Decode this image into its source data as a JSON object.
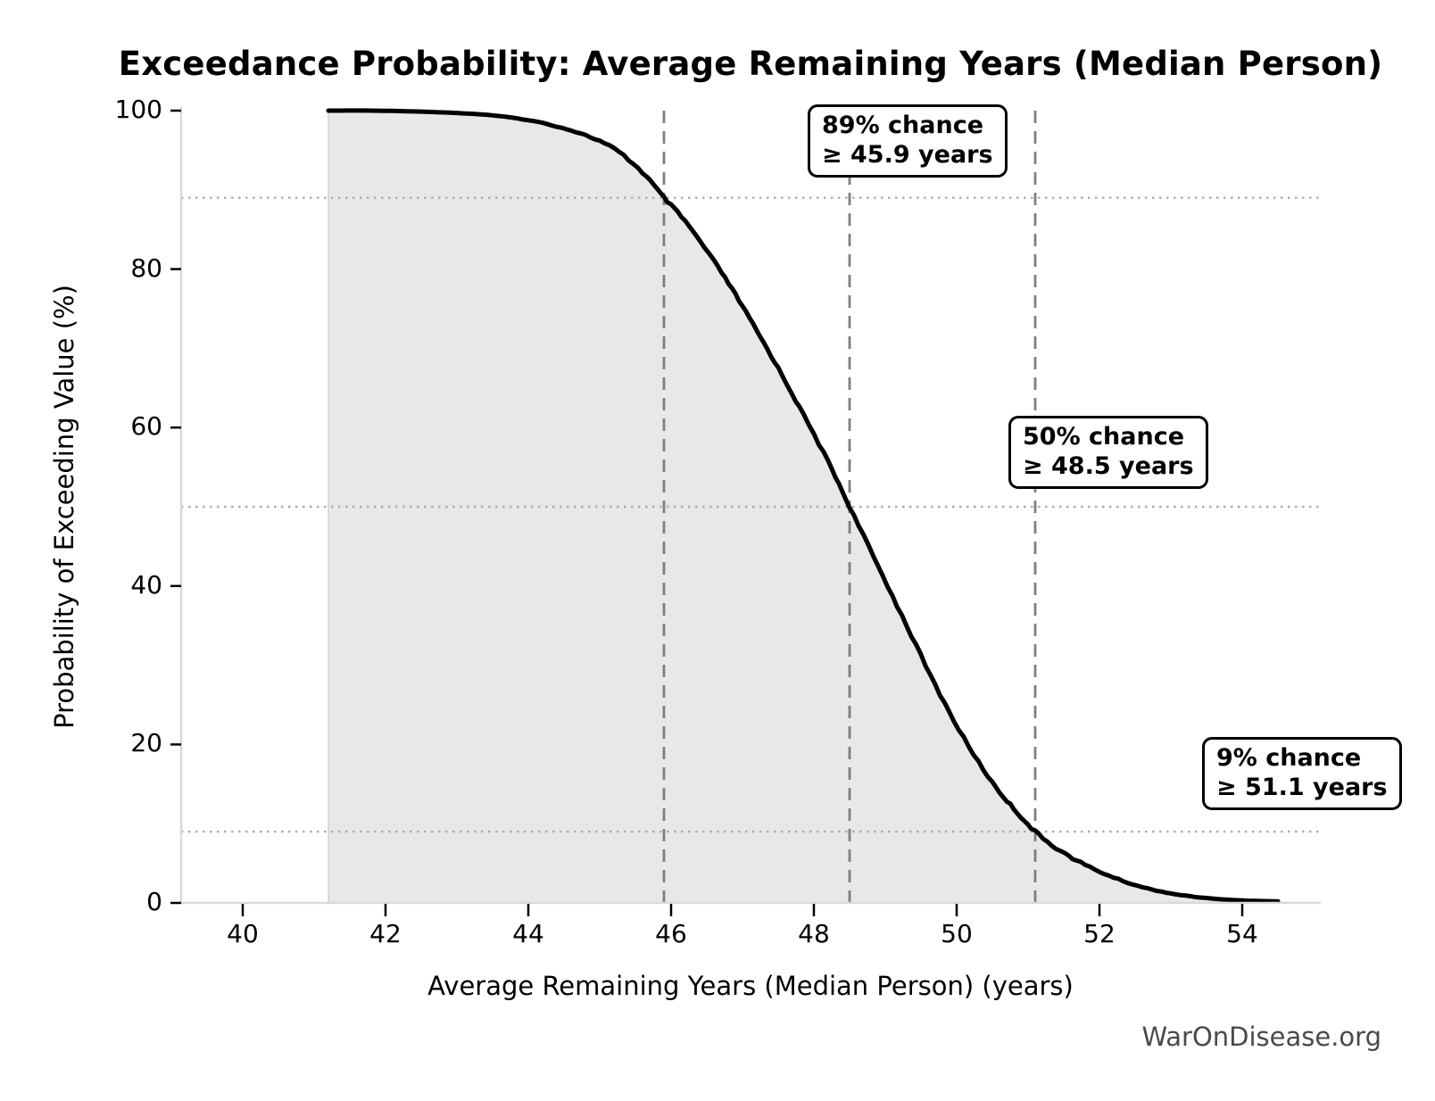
{
  "chart_data": {
    "type": "line",
    "subtype": "exceedance-probability-curve",
    "title": "Exceedance Probability: Average Remaining Years (Median Person)",
    "xlabel": "Average Remaining Years (Median Person) (years)",
    "ylabel": "Probability of Exceeding Value (%)",
    "x_ticks": [
      "40",
      "42",
      "44",
      "46",
      "48",
      "50",
      "52",
      "54"
    ],
    "y_ticks": [
      "0",
      "20",
      "40",
      "60",
      "80",
      "100"
    ],
    "xlim": [
      39.1,
      55.1
    ],
    "ylim": [
      0,
      100
    ],
    "legend": "none",
    "grid": "dotted horizontal reference lines only at marker probabilities",
    "fill_start_x": 41.2,
    "curve_points": [
      [
        41.2,
        100
      ],
      [
        41.8,
        100
      ],
      [
        42.4,
        99.9
      ],
      [
        43.0,
        99.7
      ],
      [
        43.5,
        99.4
      ],
      [
        44.0,
        98.8
      ],
      [
        44.4,
        98.0
      ],
      [
        44.8,
        96.9
      ],
      [
        45.2,
        95.2
      ],
      [
        45.6,
        92.2
      ],
      [
        45.9,
        89.0
      ],
      [
        46.2,
        86.0
      ],
      [
        46.6,
        81.0
      ],
      [
        46.9,
        76.8
      ],
      [
        47.2,
        72.2
      ],
      [
        47.5,
        67.5
      ],
      [
        47.8,
        62.5
      ],
      [
        48.2,
        55.7
      ],
      [
        48.5,
        50.0
      ],
      [
        48.9,
        42.5
      ],
      [
        49.3,
        35.0
      ],
      [
        49.7,
        27.5
      ],
      [
        50.1,
        20.8
      ],
      [
        50.5,
        15.2
      ],
      [
        50.8,
        11.9
      ],
      [
        51.1,
        9.0
      ],
      [
        51.45,
        6.6
      ],
      [
        51.8,
        4.8
      ],
      [
        52.2,
        3.2
      ],
      [
        52.6,
        2.0
      ],
      [
        53.0,
        1.2
      ],
      [
        53.4,
        0.7
      ],
      [
        53.8,
        0.4
      ],
      [
        54.2,
        0.25
      ],
      [
        54.5,
        0.2
      ]
    ],
    "markers": [
      {
        "chance_pct": 89,
        "years": 45.9
      },
      {
        "chance_pct": 50,
        "years": 48.5
      },
      {
        "chance_pct": 9,
        "years": 51.1
      }
    ],
    "watermark": "WarOnDisease.org"
  },
  "annotations": [
    {
      "line1": "89% chance",
      "line2": "≥ 45.9 years"
    },
    {
      "line1": "50% chance",
      "line2": "≥ 48.5 years"
    },
    {
      "line1": "9% chance",
      "line2": "≥ 51.1 years"
    }
  ],
  "colors": {
    "curve": "#000000",
    "fill": "#e8e8e8",
    "dashed_vline": "#7f7f7f",
    "dotted_hline": "#ababab",
    "spine": "#d9d9d9",
    "tick": "#000000",
    "watermark": "#4a4a4a"
  }
}
